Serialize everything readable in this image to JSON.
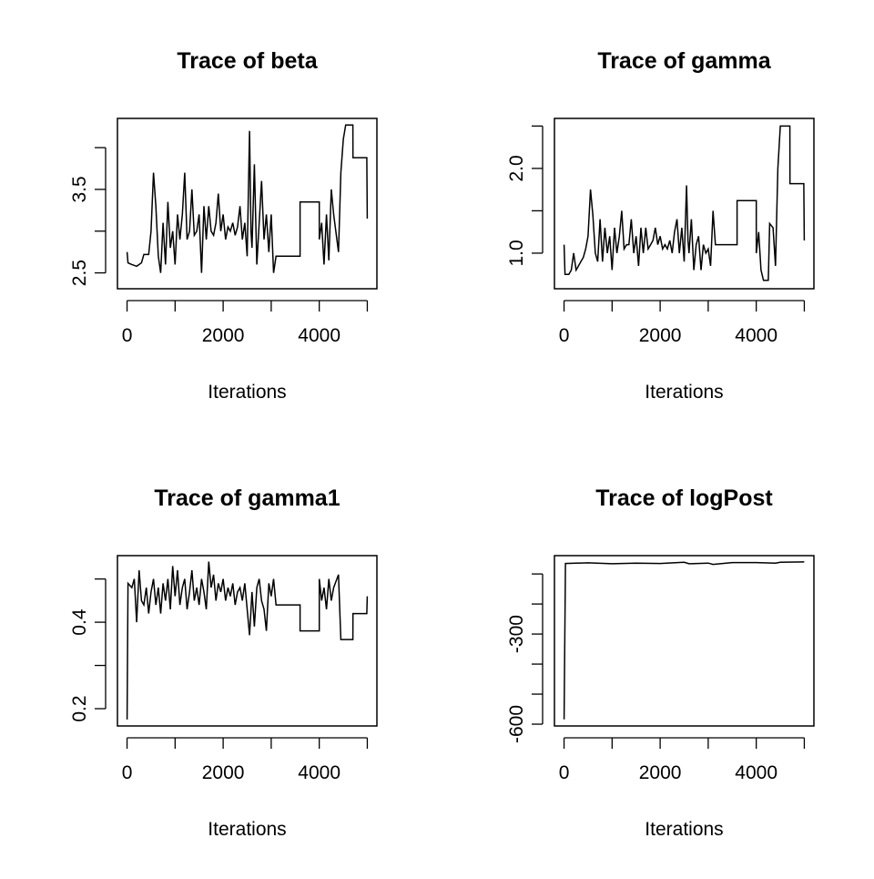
{
  "chart_data": [
    {
      "type": "line",
      "title": "Trace of beta",
      "xlabel": "Iterations",
      "color": "#000000",
      "x": [
        0,
        20,
        100,
        200,
        300,
        350,
        450,
        500,
        550,
        600,
        650,
        700,
        750,
        800,
        850,
        900,
        950,
        1000,
        1050,
        1100,
        1150,
        1200,
        1250,
        1300,
        1350,
        1400,
        1450,
        1500,
        1550,
        1600,
        1650,
        1700,
        1750,
        1800,
        1850,
        1900,
        1950,
        2000,
        2050,
        2100,
        2150,
        2200,
        2250,
        2300,
        2350,
        2400,
        2450,
        2500,
        2550,
        2580,
        2600,
        2650,
        2700,
        2750,
        2800,
        2850,
        2900,
        2950,
        3000,
        3050,
        3100,
        3600,
        3601,
        4000,
        4001,
        4050,
        4100,
        4150,
        4200,
        4250,
        4300,
        4400,
        4450,
        4500,
        4550,
        4700,
        4701,
        4990,
        5000
      ],
      "values": [
        2.75,
        2.62,
        2.6,
        2.58,
        2.62,
        2.72,
        2.72,
        3.0,
        3.7,
        3.3,
        2.7,
        2.5,
        3.1,
        2.6,
        3.35,
        2.8,
        3.0,
        2.6,
        3.2,
        2.9,
        3.2,
        3.7,
        2.9,
        3.0,
        3.5,
        2.95,
        3.0,
        3.2,
        2.5,
        3.3,
        2.9,
        3.3,
        3.0,
        2.95,
        3.1,
        3.45,
        3.0,
        3.2,
        2.9,
        3.05,
        3.0,
        3.1,
        2.95,
        3.05,
        3.3,
        2.9,
        3.1,
        2.7,
        4.2,
        3.0,
        2.8,
        3.8,
        2.6,
        3.1,
        3.6,
        2.9,
        3.2,
        2.75,
        3.2,
        2.5,
        2.7,
        2.7,
        3.35,
        3.35,
        2.9,
        3.1,
        2.6,
        3.2,
        2.65,
        3.5,
        3.2,
        2.75,
        3.7,
        4.1,
        4.27,
        4.27,
        3.88,
        3.88,
        3.15
      ],
      "xlim": [
        -200,
        5200
      ],
      "xticks": [
        0,
        {
          "value": 1000,
          "label": null
        },
        2000,
        {
          "value": 3000,
          "label": null
        },
        4000,
        {
          "value": 5000,
          "label": null
        }
      ],
      "ylim": [
        2.31,
        4.35
      ],
      "yticks": [
        2.5,
        {
          "value": 3,
          "label": null
        },
        3.5,
        {
          "value": 4,
          "label": null
        }
      ]
    },
    {
      "type": "line",
      "title": "Trace of gamma",
      "xlabel": "Iterations",
      "color": "#000000",
      "x": [
        0,
        20,
        100,
        150,
        200,
        250,
        300,
        350,
        400,
        450,
        500,
        550,
        600,
        650,
        700,
        750,
        800,
        850,
        900,
        950,
        1000,
        1050,
        1100,
        1150,
        1200,
        1250,
        1300,
        1350,
        1400,
        1450,
        1500,
        1550,
        1600,
        1650,
        1700,
        1750,
        1800,
        1850,
        1900,
        1950,
        2000,
        2050,
        2100,
        2150,
        2200,
        2250,
        2300,
        2350,
        2400,
        2450,
        2500,
        2550,
        2580,
        2600,
        2650,
        2700,
        2750,
        2800,
        2850,
        2900,
        2950,
        3000,
        3050,
        3100,
        3150,
        3600,
        3601,
        4000,
        4001,
        4050,
        4100,
        4150,
        4250,
        4280,
        4350,
        4400,
        4450,
        4500,
        4700,
        4701,
        4990,
        5000
      ],
      "values": [
        1.1,
        0.75,
        0.75,
        0.8,
        1.0,
        0.8,
        0.85,
        0.9,
        0.95,
        1.05,
        1.2,
        1.75,
        1.45,
        1.0,
        0.9,
        1.4,
        0.9,
        1.3,
        1.0,
        1.2,
        0.8,
        1.3,
        1.0,
        1.2,
        1.5,
        1.05,
        1.1,
        1.1,
        1.4,
        1.0,
        1.2,
        0.85,
        1.3,
        1.0,
        1.3,
        1.05,
        1.1,
        1.15,
        1.3,
        1.1,
        1.2,
        1.05,
        1.1,
        1.05,
        1.15,
        1.0,
        1.25,
        1.4,
        1.0,
        1.3,
        0.9,
        1.8,
        1.15,
        1.0,
        1.4,
        0.8,
        1.1,
        1.2,
        0.8,
        1.1,
        1.0,
        1.05,
        0.85,
        1.5,
        1.1,
        1.1,
        1.62,
        1.62,
        1.0,
        1.25,
        0.8,
        0.68,
        0.68,
        1.35,
        1.3,
        0.85,
        2.0,
        2.5,
        2.5,
        1.82,
        1.82,
        1.15
      ],
      "xlim": [
        -200,
        5200
      ],
      "xticks": [
        0,
        {
          "value": 1000,
          "label": null
        },
        2000,
        {
          "value": 3000,
          "label": null
        },
        4000,
        {
          "value": 5000,
          "label": null
        }
      ],
      "ylim": [
        0.58,
        2.59
      ],
      "yticks": [
        {
          "value": 1,
          "label": "1.0"
        },
        {
          "value": 1.5,
          "label": null
        },
        {
          "value": 2,
          "label": "2.0"
        },
        {
          "value": 2.5,
          "label": null
        }
      ]
    },
    {
      "type": "line",
      "title": "Trace of gamma1",
      "xlabel": "Iterations",
      "color": "#000000",
      "x": [
        0,
        20,
        100,
        150,
        200,
        250,
        300,
        350,
        400,
        450,
        500,
        550,
        600,
        650,
        700,
        750,
        800,
        850,
        900,
        950,
        1000,
        1050,
        1100,
        1150,
        1200,
        1250,
        1300,
        1350,
        1400,
        1450,
        1500,
        1550,
        1600,
        1650,
        1700,
        1750,
        1800,
        1850,
        1900,
        1950,
        2000,
        2050,
        2100,
        2150,
        2200,
        2250,
        2300,
        2350,
        2400,
        2450,
        2500,
        2550,
        2600,
        2650,
        2700,
        2750,
        2800,
        2850,
        2900,
        2950,
        3000,
        3050,
        3100,
        3600,
        3601,
        4000,
        4001,
        4050,
        4100,
        4150,
        4200,
        4250,
        4300,
        4400,
        4450,
        4700,
        4701,
        4990,
        5000
      ],
      "values": [
        0.175,
        0.49,
        0.48,
        0.5,
        0.4,
        0.52,
        0.45,
        0.44,
        0.48,
        0.42,
        0.47,
        0.5,
        0.44,
        0.48,
        0.42,
        0.49,
        0.45,
        0.5,
        0.43,
        0.53,
        0.46,
        0.52,
        0.44,
        0.48,
        0.5,
        0.43,
        0.47,
        0.52,
        0.45,
        0.48,
        0.44,
        0.5,
        0.47,
        0.43,
        0.54,
        0.48,
        0.51,
        0.45,
        0.49,
        0.47,
        0.5,
        0.45,
        0.48,
        0.46,
        0.49,
        0.44,
        0.47,
        0.48,
        0.45,
        0.49,
        0.43,
        0.37,
        0.47,
        0.39,
        0.48,
        0.5,
        0.45,
        0.43,
        0.38,
        0.49,
        0.46,
        0.5,
        0.44,
        0.44,
        0.38,
        0.38,
        0.5,
        0.45,
        0.48,
        0.43,
        0.5,
        0.45,
        0.48,
        0.51,
        0.36,
        0.36,
        0.42,
        0.42,
        0.46
      ],
      "xlim": [
        -200,
        5200
      ],
      "xticks": [
        0,
        {
          "value": 1000,
          "label": null
        },
        2000,
        {
          "value": 3000,
          "label": null
        },
        4000,
        {
          "value": 5000,
          "label": null
        }
      ],
      "ylim": [
        0.16,
        0.554
      ],
      "yticks": [
        0.2,
        {
          "value": 0.3,
          "label": null
        },
        0.4,
        {
          "value": 0.5,
          "label": null
        }
      ]
    },
    {
      "type": "line",
      "title": "Trace of logPost",
      "xlabel": "Iterations",
      "color": "#000000",
      "x": [
        0,
        30,
        500,
        1000,
        1500,
        2000,
        2500,
        2600,
        3000,
        3100,
        3500,
        4000,
        4400,
        4500,
        5000
      ],
      "values": [
        -584,
        -65,
        -63,
        -66,
        -64,
        -65,
        -61,
        -66,
        -64,
        -68,
        -62,
        -62,
        -64,
        -61,
        -60
      ],
      "xlim": [
        -200,
        5200
      ],
      "xticks": [
        0,
        {
          "value": 1000,
          "label": null
        },
        2000,
        {
          "value": 3000,
          "label": null
        },
        4000,
        {
          "value": 5000,
          "label": null
        }
      ],
      "ylim": [
        -606,
        -39
      ],
      "yticks": [
        -600,
        {
          "value": -500,
          "label": null
        },
        {
          "value": -400,
          "label": null
        },
        -300,
        {
          "value": -200,
          "label": null
        },
        {
          "value": -100,
          "label": null
        }
      ]
    }
  ]
}
